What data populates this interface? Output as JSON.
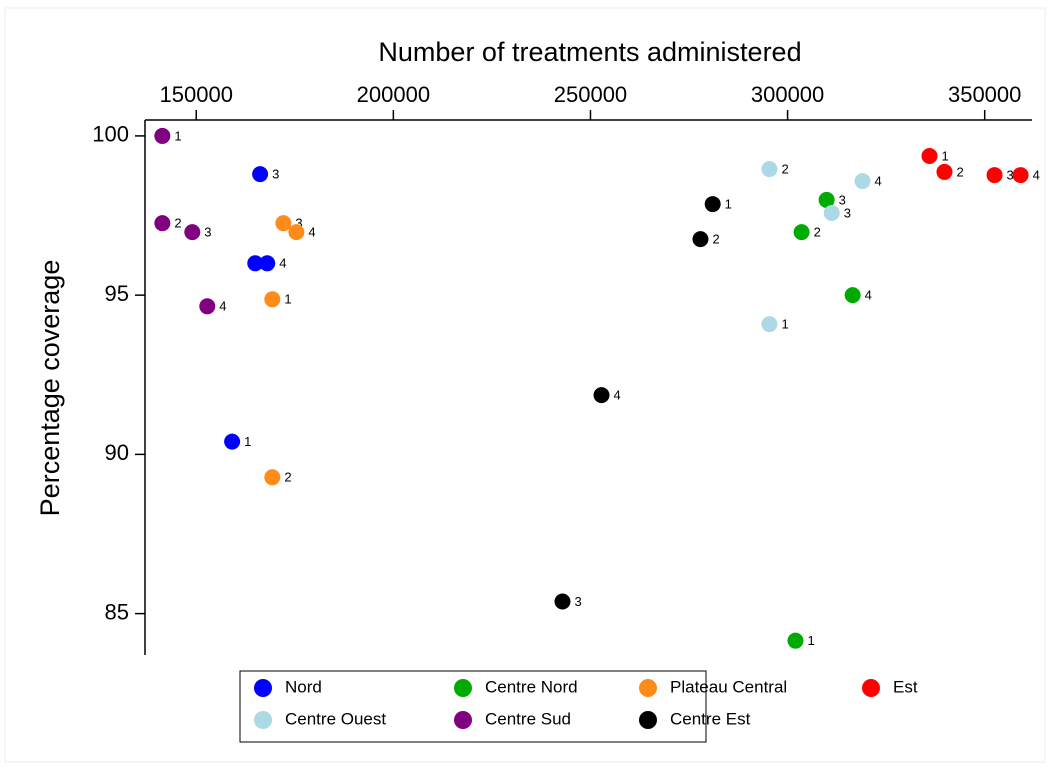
{
  "chart_data": {
    "type": "scatter",
    "x_label": "Number of treatments administered",
    "y_label": "Percentage coverage",
    "xlim": [
      137000,
      362000
    ],
    "xticks": [
      150000,
      200000,
      250000,
      300000,
      350000
    ],
    "ylim": [
      83.7,
      100.5
    ],
    "yticks": [
      85,
      90,
      95,
      100
    ],
    "series": [
      {
        "name": "Nord",
        "color": "#0000ff",
        "x": [
          159100,
          164970,
          166200,
          168000
        ],
        "values": [
          90.4,
          96.0,
          98.8,
          96.0
        ],
        "labels": [
          "1",
          "2",
          "3",
          "4"
        ]
      },
      {
        "name": "Centre Nord",
        "color": "#00aa00",
        "x": [
          302000,
          303550,
          309900,
          316500
        ],
        "values": [
          84.15,
          96.98,
          97.99,
          95.0
        ],
        "labels": [
          "1",
          "2",
          "3",
          "4"
        ]
      },
      {
        "name": "Plateau Central",
        "color": "#ff8c1a",
        "x": [
          169300,
          169300,
          172100,
          175400
        ],
        "values": [
          94.87,
          89.28,
          97.26,
          96.98
        ],
        "labels": [
          "1",
          "2",
          "3",
          "4"
        ]
      },
      {
        "name": "Est",
        "color": "#ff0000",
        "x": [
          336000,
          339800,
          352500,
          359100
        ],
        "values": [
          99.37,
          98.87,
          98.77,
          98.77
        ],
        "labels": [
          "1",
          "2",
          "3",
          "4"
        ]
      },
      {
        "name": "Centre Ouest",
        "color": "#add8e6",
        "x": [
          295400,
          295400,
          311200,
          319000
        ],
        "values": [
          94.09,
          98.96,
          97.58,
          98.58
        ],
        "labels": [
          "1",
          "2",
          "3",
          "4"
        ]
      },
      {
        "name": "Centre Sud",
        "color": "#800080",
        "x": [
          141400,
          141400,
          149000,
          152800
        ],
        "values": [
          100.0,
          97.26,
          96.98,
          94.65
        ],
        "labels": [
          "1",
          "2",
          "3",
          "4"
        ]
      },
      {
        "name": "Centre Est",
        "color": "#000000",
        "x": [
          281000,
          277900,
          242900,
          252800
        ],
        "values": [
          97.86,
          96.76,
          85.38,
          91.86
        ],
        "labels": [
          "1",
          "2",
          "3",
          "4"
        ]
      }
    ]
  }
}
